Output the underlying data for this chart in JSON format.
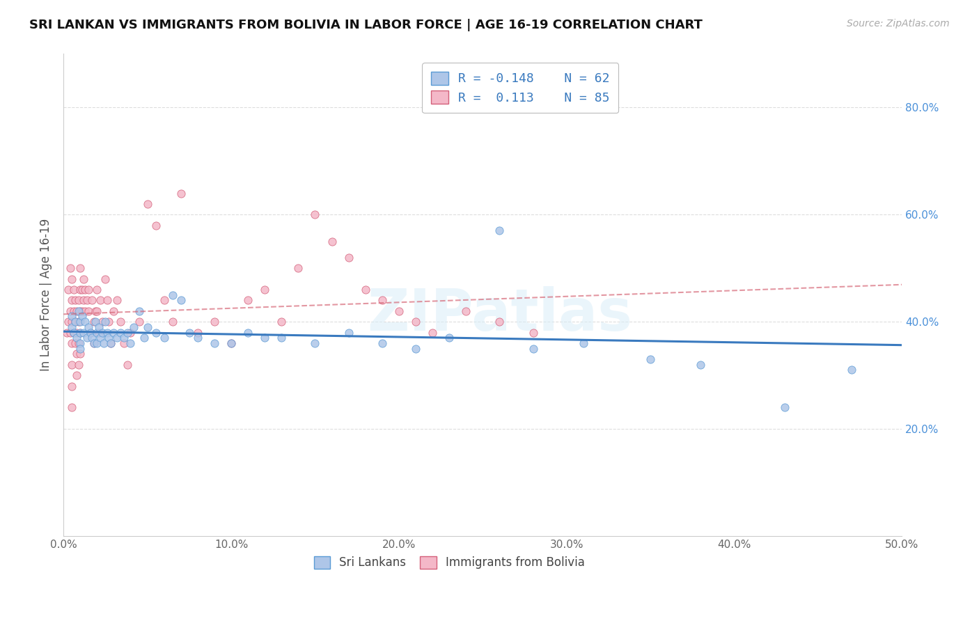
{
  "title": "SRI LANKAN VS IMMIGRANTS FROM BOLIVIA IN LABOR FORCE | AGE 16-19 CORRELATION CHART",
  "source": "Source: ZipAtlas.com",
  "ylabel": "In Labor Force | Age 16-19",
  "x_min": 0.0,
  "x_max": 0.5,
  "y_min": 0.0,
  "y_max": 0.9,
  "x_ticks": [
    0.0,
    0.1,
    0.2,
    0.3,
    0.4,
    0.5
  ],
  "x_tick_labels": [
    "0.0%",
    "",
    "20.0%",
    "",
    "40.0%",
    "50.0%"
  ],
  "y_ticks": [
    0.2,
    0.4,
    0.6,
    0.8
  ],
  "y_tick_labels": [
    "20.0%",
    "40.0%",
    "60.0%",
    "80.0%"
  ],
  "sri_lankan_fill": "#aec6e8",
  "sri_lankan_edge": "#5b9bd5",
  "bolivia_fill": "#f4b8c8",
  "bolivia_edge": "#d4607a",
  "sri_line_color": "#3a7abf",
  "bol_line_color": "#d46070",
  "watermark": "ZIPatlas",
  "legend_R_sri": "-0.148",
  "legend_N_sri": "62",
  "legend_R_bol": "0.113",
  "legend_N_bol": "85",
  "sri_x": [
    0.005,
    0.005,
    0.006,
    0.007,
    0.008,
    0.009,
    0.01,
    0.01,
    0.01,
    0.01,
    0.011,
    0.012,
    0.013,
    0.014,
    0.015,
    0.016,
    0.017,
    0.018,
    0.019,
    0.02,
    0.02,
    0.021,
    0.022,
    0.023,
    0.024,
    0.025,
    0.026,
    0.027,
    0.028,
    0.03,
    0.032,
    0.034,
    0.036,
    0.038,
    0.04,
    0.042,
    0.045,
    0.048,
    0.05,
    0.055,
    0.06,
    0.065,
    0.07,
    0.075,
    0.08,
    0.09,
    0.1,
    0.11,
    0.12,
    0.13,
    0.15,
    0.17,
    0.19,
    0.21,
    0.23,
    0.26,
    0.28,
    0.31,
    0.35,
    0.38,
    0.43,
    0.47
  ],
  "sri_y": [
    0.39,
    0.41,
    0.38,
    0.4,
    0.37,
    0.42,
    0.38,
    0.4,
    0.36,
    0.35,
    0.41,
    0.38,
    0.4,
    0.37,
    0.39,
    0.38,
    0.37,
    0.36,
    0.4,
    0.38,
    0.36,
    0.39,
    0.37,
    0.38,
    0.36,
    0.4,
    0.38,
    0.37,
    0.36,
    0.38,
    0.37,
    0.38,
    0.37,
    0.38,
    0.36,
    0.39,
    0.42,
    0.37,
    0.39,
    0.38,
    0.37,
    0.45,
    0.44,
    0.38,
    0.37,
    0.36,
    0.36,
    0.38,
    0.37,
    0.37,
    0.36,
    0.38,
    0.36,
    0.35,
    0.37,
    0.57,
    0.35,
    0.36,
    0.33,
    0.32,
    0.24,
    0.31
  ],
  "bol_x": [
    0.002,
    0.003,
    0.003,
    0.004,
    0.004,
    0.004,
    0.005,
    0.005,
    0.005,
    0.005,
    0.005,
    0.005,
    0.005,
    0.006,
    0.006,
    0.006,
    0.007,
    0.007,
    0.007,
    0.008,
    0.008,
    0.008,
    0.008,
    0.009,
    0.009,
    0.009,
    0.009,
    0.01,
    0.01,
    0.01,
    0.01,
    0.01,
    0.011,
    0.011,
    0.012,
    0.012,
    0.013,
    0.013,
    0.014,
    0.015,
    0.015,
    0.016,
    0.017,
    0.018,
    0.018,
    0.019,
    0.02,
    0.02,
    0.021,
    0.022,
    0.023,
    0.025,
    0.026,
    0.027,
    0.028,
    0.03,
    0.032,
    0.034,
    0.036,
    0.038,
    0.04,
    0.045,
    0.05,
    0.055,
    0.06,
    0.065,
    0.07,
    0.08,
    0.09,
    0.1,
    0.11,
    0.12,
    0.13,
    0.14,
    0.15,
    0.16,
    0.17,
    0.18,
    0.19,
    0.2,
    0.21,
    0.22,
    0.24,
    0.26,
    0.28
  ],
  "bol_y": [
    0.38,
    0.46,
    0.4,
    0.5,
    0.42,
    0.38,
    0.48,
    0.44,
    0.4,
    0.36,
    0.32,
    0.28,
    0.24,
    0.46,
    0.42,
    0.38,
    0.44,
    0.4,
    0.36,
    0.42,
    0.38,
    0.34,
    0.3,
    0.44,
    0.4,
    0.36,
    0.32,
    0.5,
    0.46,
    0.42,
    0.38,
    0.34,
    0.46,
    0.42,
    0.48,
    0.44,
    0.46,
    0.42,
    0.44,
    0.46,
    0.42,
    0.38,
    0.44,
    0.4,
    0.36,
    0.42,
    0.46,
    0.42,
    0.38,
    0.44,
    0.4,
    0.48,
    0.44,
    0.4,
    0.36,
    0.42,
    0.44,
    0.4,
    0.36,
    0.32,
    0.38,
    0.4,
    0.62,
    0.58,
    0.44,
    0.4,
    0.64,
    0.38,
    0.4,
    0.36,
    0.44,
    0.46,
    0.4,
    0.5,
    0.6,
    0.55,
    0.52,
    0.46,
    0.44,
    0.42,
    0.4,
    0.38,
    0.42,
    0.4,
    0.38
  ]
}
